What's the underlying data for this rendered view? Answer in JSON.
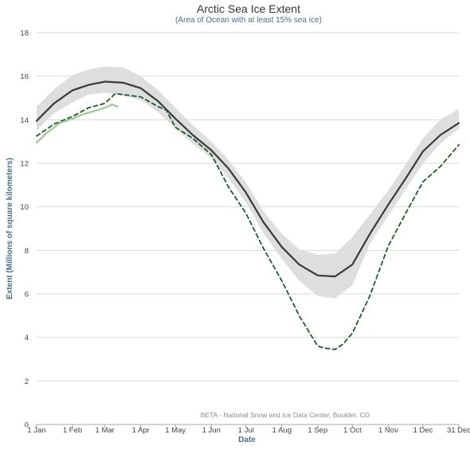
{
  "chart_data": {
    "type": "line",
    "title": "Arctic Sea Ice Extent",
    "subtitle": "(Area of Ocean with at least 15% sea ice)",
    "xlabel": "Date",
    "ylabel": "Extent (Millions of square kilometers)",
    "credit": "BETA - National Snow and Ice Data Center, Boulder, CO",
    "ylim": [
      0,
      18
    ],
    "yticks": [
      0,
      2,
      4,
      6,
      8,
      10,
      12,
      14,
      16,
      18
    ],
    "xlim": [
      0,
      365
    ],
    "xticks": [
      {
        "day": 0,
        "label": "1 Jan"
      },
      {
        "day": 31,
        "label": "1 Feb"
      },
      {
        "day": 59,
        "label": "1 Mar"
      },
      {
        "day": 90,
        "label": "1 Apr"
      },
      {
        "day": 120,
        "label": "1 May"
      },
      {
        "day": 151,
        "label": "1 Jun"
      },
      {
        "day": 181,
        "label": "1 Jul"
      },
      {
        "day": 212,
        "label": "1 Aug"
      },
      {
        "day": 243,
        "label": "1 Sep"
      },
      {
        "day": 273,
        "label": "1 Oct"
      },
      {
        "day": 304,
        "label": "1 Nov"
      },
      {
        "day": 334,
        "label": "1 Dec"
      },
      {
        "day": 365,
        "label": "31 Dec"
      }
    ],
    "grid": true,
    "colors": {
      "band": "#dedede",
      "mean": "#3a3a3a",
      "dashed": "#1f5a2c",
      "current": "#a9c99a",
      "grid": "#d8d8d8",
      "axis": "#9aaac0"
    },
    "band": {
      "x": [
        0,
        15,
        31,
        45,
        59,
        75,
        90,
        105,
        120,
        135,
        151,
        166,
        181,
        196,
        212,
        227,
        243,
        258,
        273,
        288,
        304,
        319,
        334,
        349,
        365
      ],
      "lower": [
        13.5,
        14.3,
        14.8,
        15.15,
        15.25,
        15.1,
        14.9,
        14.35,
        13.6,
        12.9,
        12.25,
        11.3,
        10.2,
        8.8,
        7.6,
        6.6,
        5.9,
        5.8,
        6.4,
        8.3,
        9.6,
        10.8,
        12.0,
        12.9,
        13.6
      ],
      "upper": [
        14.6,
        15.4,
        16.05,
        16.3,
        16.45,
        16.4,
        16.0,
        15.35,
        14.55,
        13.75,
        13.0,
        12.15,
        11.1,
        9.8,
        8.75,
        8.05,
        7.8,
        7.85,
        8.6,
        9.65,
        10.75,
        11.95,
        13.15,
        14.0,
        14.5
      ]
    },
    "series": [
      {
        "style": "solid",
        "x": [
          0,
          15,
          31,
          45,
          59,
          75,
          90,
          105,
          120,
          135,
          151,
          166,
          181,
          196,
          212,
          227,
          243,
          258,
          273,
          288,
          304,
          319,
          334,
          349,
          365
        ],
        "y": [
          13.95,
          14.75,
          15.35,
          15.6,
          15.75,
          15.7,
          15.45,
          14.85,
          14.05,
          13.3,
          12.6,
          11.75,
          10.65,
          9.3,
          8.15,
          7.35,
          6.85,
          6.8,
          7.35,
          8.75,
          10.1,
          11.3,
          12.55,
          13.3,
          13.85
        ]
      },
      {
        "style": "dashed",
        "x": [
          0,
          15,
          31,
          45,
          59,
          68,
          75,
          90,
          105,
          112,
          120,
          135,
          151,
          166,
          181,
          196,
          212,
          227,
          243,
          250,
          258,
          265,
          273,
          288,
          304,
          319,
          334,
          349,
          365
        ],
        "y": [
          13.25,
          13.8,
          14.15,
          14.55,
          14.75,
          15.2,
          15.15,
          15.05,
          14.6,
          14.45,
          13.65,
          13.15,
          12.4,
          10.9,
          9.7,
          8.1,
          6.6,
          5.0,
          3.6,
          3.5,
          3.45,
          3.7,
          4.2,
          5.9,
          8.2,
          9.7,
          11.15,
          11.85,
          12.85
        ]
      },
      {
        "style": "solid",
        "x": [
          0,
          10,
          20,
          31,
          40,
          50,
          59,
          65,
          70
        ],
        "y": [
          12.95,
          13.45,
          13.85,
          14.05,
          14.25,
          14.4,
          14.55,
          14.7,
          14.6
        ]
      }
    ]
  }
}
